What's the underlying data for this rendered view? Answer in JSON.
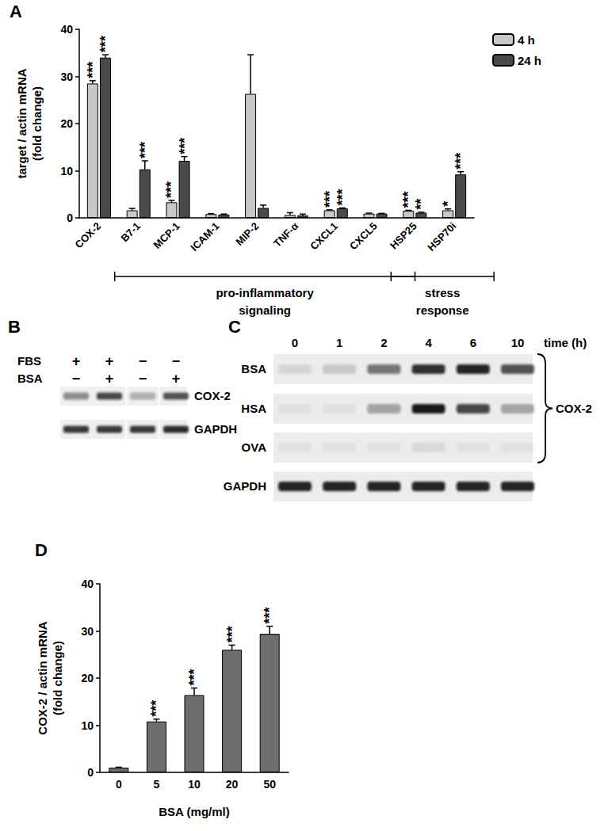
{
  "chart_data": [
    {
      "panel": "A",
      "type": "bar",
      "ylabel": "target / actin mRNA\n(fold change)",
      "categories": [
        "COX-2",
        "B7-1",
        "MCP-1",
        "ICAM-1",
        "MIP-2",
        "TNF-α",
        "CXCL1",
        "CXCL5",
        "HSP25",
        "HSP70i"
      ],
      "series": [
        {
          "name": "4 h",
          "color": "#c8c8c8",
          "values": [
            28.5,
            1.6,
            3.3,
            0.8,
            26.3,
            0.6,
            1.6,
            0.9,
            1.5,
            1.6
          ],
          "errors": [
            0.6,
            0.4,
            0.4,
            0.1,
            8.3,
            0.5,
            0.1,
            0.1,
            0.1,
            0.3
          ],
          "significance": [
            "***",
            null,
            "***",
            null,
            null,
            null,
            "***",
            null,
            "***",
            "*"
          ]
        },
        {
          "name": "24 h",
          "color": "#4a4a4a",
          "values": [
            34.0,
            10.3,
            12.1,
            0.7,
            2.1,
            0.5,
            2.0,
            0.9,
            1.1,
            9.2
          ],
          "errors": [
            0.6,
            1.8,
            0.9,
            0.1,
            0.6,
            0.3,
            0.1,
            0.05,
            0.1,
            0.6
          ],
          "significance": [
            "***",
            "***",
            "***",
            null,
            null,
            null,
            "***",
            null,
            "**",
            "***"
          ]
        }
      ],
      "ylim": [
        0,
        40
      ],
      "yticks": [
        0,
        10,
        20,
        30,
        40
      ],
      "legend": "top-right",
      "grid": false,
      "groups": [
        {
          "label": "pro-inflammatory\nsignaling",
          "from": "B7-1",
          "to": "CXCL5"
        },
        {
          "label": "stress\nresponse",
          "from": "HSP25",
          "to": "HSP70i"
        }
      ]
    },
    {
      "panel": "D",
      "type": "bar",
      "ylabel": "COX-2 / actin mRNA\n(fold change)",
      "xlabel": "BSA (mg/ml)",
      "categories": [
        "0",
        "5",
        "10",
        "20",
        "50"
      ],
      "values": [
        1.0,
        10.8,
        16.4,
        26.0,
        29.4
      ],
      "errors": [
        0.1,
        0.5,
        1.5,
        1.0,
        1.6
      ],
      "significance": [
        null,
        "***",
        "***",
        "***",
        "***"
      ],
      "color": "#6e6e6e",
      "ylim": [
        0,
        40
      ],
      "yticks": [
        0,
        10,
        20,
        30,
        40
      ],
      "grid": false
    }
  ],
  "blots": [
    {
      "panel": "B",
      "conditions": [
        {
          "label": "FBS",
          "signs": [
            "+",
            "+",
            "−",
            "−"
          ]
        },
        {
          "label": "BSA",
          "signs": [
            "−",
            "+",
            "−",
            "+"
          ]
        }
      ],
      "rows": [
        {
          "label": "COX-2",
          "intensity": [
            0.45,
            0.75,
            0.3,
            0.7
          ]
        },
        {
          "label": "GAPDH",
          "intensity": [
            0.85,
            0.85,
            0.85,
            0.9
          ]
        }
      ]
    },
    {
      "panel": "C",
      "lanes_label": "time (h)",
      "lanes": [
        "0",
        "1",
        "2",
        "4",
        "6",
        "10"
      ],
      "rows": [
        {
          "label": "BSA",
          "intensity": [
            0.1,
            0.15,
            0.55,
            0.85,
            0.9,
            0.7
          ]
        },
        {
          "label": "HSA",
          "intensity": [
            0.05,
            0.05,
            0.35,
            0.95,
            0.75,
            0.3
          ]
        },
        {
          "label": "OVA",
          "intensity": [
            0.05,
            0.05,
            0.05,
            0.08,
            0.05,
            0.05
          ]
        },
        {
          "label": "GAPDH",
          "intensity": [
            0.9,
            0.9,
            0.9,
            0.9,
            0.9,
            0.9
          ]
        }
      ],
      "bracket": {
        "label": "COX-2",
        "rows": [
          "BSA",
          "HSA",
          "OVA"
        ]
      }
    }
  ]
}
